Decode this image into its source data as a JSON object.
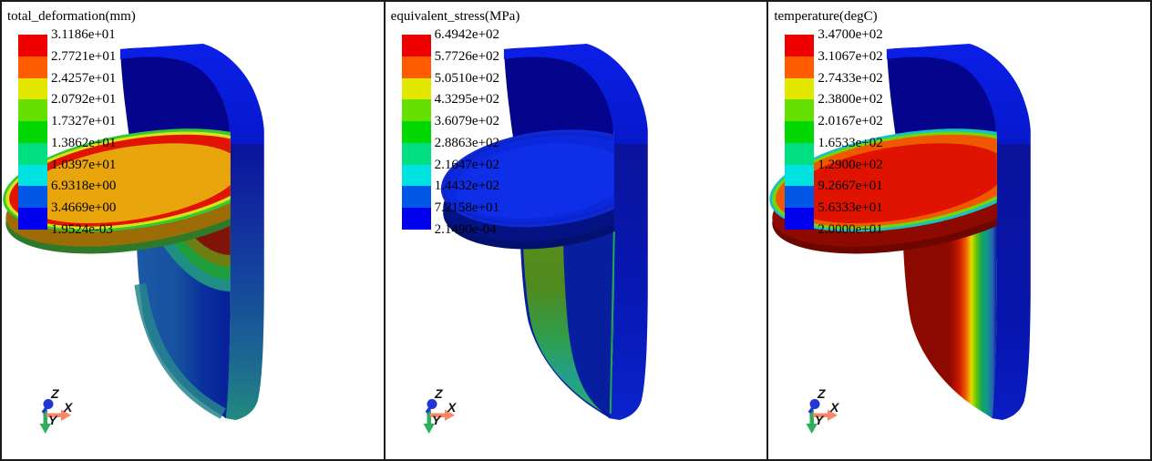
{
  "window": {
    "background": "#ffffff",
    "border_color": "#1a1a1a"
  },
  "colorbar_band_colors": [
    "#ee0000",
    "#ff5c00",
    "#e4e800",
    "#66e000",
    "#00d800",
    "#00df7f",
    "#00e2e2",
    "#0057e8",
    "#0000ee"
  ],
  "triad_colors": {
    "x_axis": "#f8876a",
    "y_axis": "#2fae5e",
    "z_axis": "#2236d6"
  },
  "panels": [
    {
      "name": "total-deformation-view",
      "legend": {
        "title": "total_deformation(mm)",
        "tick_labels": [
          "3.1186e+01",
          "2.7721e+01",
          "2.4257e+01",
          "2.0792e+01",
          "1.7327e+01",
          "1.3862e+01",
          "1.0397e+01",
          "6.9318e+00",
          "3.4669e+00",
          "1.9524e-03"
        ]
      },
      "triad": {
        "z": "Z",
        "x": "X",
        "y": "Y"
      }
    },
    {
      "name": "equivalent-stress-view",
      "legend": {
        "title": "equivalent_stress(MPa)",
        "tick_labels": [
          "6.4942e+02",
          "5.7726e+02",
          "5.0510e+02",
          "4.3295e+02",
          "3.6079e+02",
          "2.8863e+02",
          "2.1647e+02",
          "1.4432e+02",
          "7.2158e+01",
          "2.1490e-04"
        ]
      },
      "triad": {
        "z": "Z",
        "x": "X",
        "y": "Y"
      }
    },
    {
      "name": "temperature-view",
      "legend": {
        "title": "temperature(degC)",
        "tick_labels": [
          "3.4700e+02",
          "3.1067e+02",
          "2.7433e+02",
          "2.3800e+02",
          "2.0167e+02",
          "1.6533e+02",
          "1.2900e+02",
          "9.2667e+01",
          "5.6333e+01",
          "2.0000e+01"
        ]
      },
      "triad": {
        "z": "Z",
        "x": "X",
        "y": "Y"
      }
    }
  ]
}
